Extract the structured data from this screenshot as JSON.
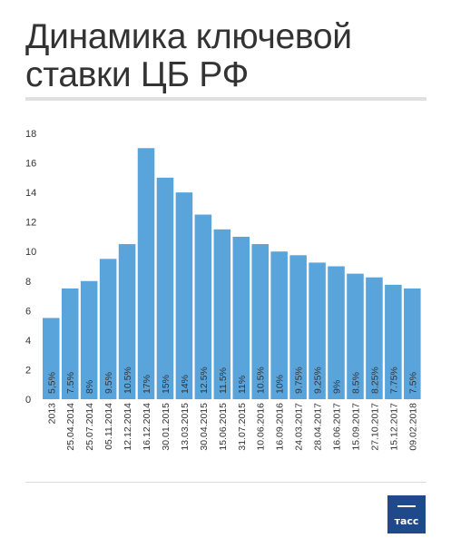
{
  "title": "Динамика ключевой ставки ЦБ РФ",
  "logo": {
    "text": "тасс"
  },
  "colors": {
    "bar": "#5aa4dc",
    "text": "#333333",
    "grid": "#e0e0e0"
  },
  "chart_data": {
    "type": "bar",
    "title": "Динамика ключевой ставки ЦБ РФ",
    "xlabel": "",
    "ylabel": "",
    "ylim": [
      0,
      18
    ],
    "yticks": [
      0,
      2,
      4,
      6,
      8,
      10,
      12,
      14,
      16,
      18
    ],
    "grid": false,
    "categories": [
      "2013",
      "25.04.2014",
      "25.07.2014",
      "05.11.2014",
      "12.12.2014",
      "16.12.2014",
      "30.01.2015",
      "13.03.2015",
      "30.04.2015",
      "15.06.2015",
      "31.07.2015",
      "10.06.2016",
      "16.09.2016",
      "24.03.2017",
      "28.04.2017",
      "16.06.2017",
      "15.09.2017",
      "27.10.2017",
      "15.12.2017",
      "09.02.2018"
    ],
    "values": [
      5.5,
      7.5,
      8,
      9.5,
      10.5,
      17,
      15,
      14,
      12.5,
      11.5,
      11,
      10.5,
      10,
      9.75,
      9.25,
      9,
      8.5,
      8.25,
      7.75,
      7.5
    ],
    "labels": [
      "5,5%",
      "7.5%",
      "8%",
      "9.5%",
      "10.5%",
      "17%",
      "15%",
      "14%",
      "12.5%",
      "11.5%",
      "11%",
      "10.5%",
      "10%",
      "9.75%",
      "9.25%",
      "9%",
      "8.5%",
      "8.25%",
      "7.75%",
      "7.5%"
    ]
  }
}
